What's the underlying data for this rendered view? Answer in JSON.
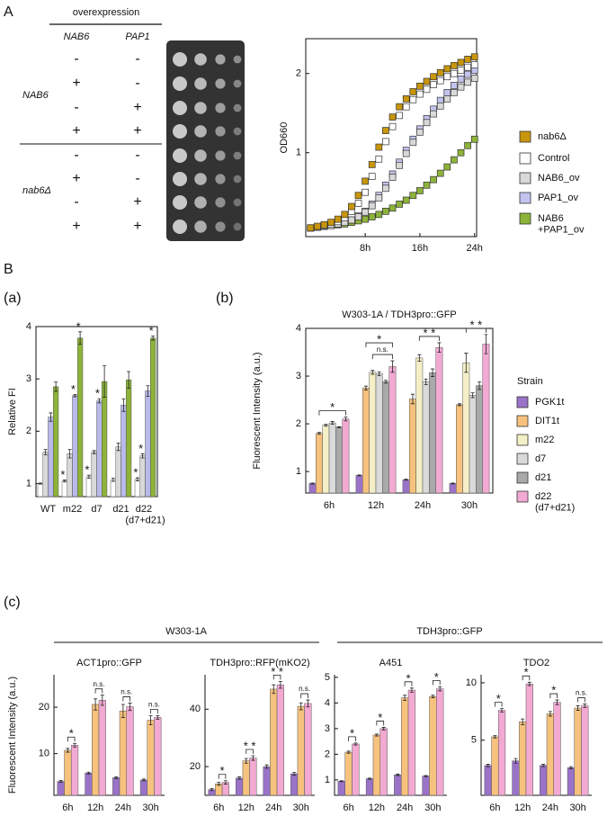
{
  "panel_labels": [
    "A",
    "B",
    "(a)",
    "(b)",
    "(c)"
  ],
  "genotype_table": {
    "header": "overexpression",
    "columns": [
      "NAB6",
      "PAP1"
    ],
    "groups": [
      {
        "label": "NAB6",
        "rows": [
          [
            "-",
            "-"
          ],
          [
            "+",
            "-"
          ],
          [
            "-",
            "+"
          ],
          [
            "+",
            "+"
          ]
        ]
      },
      {
        "label": "nab6Δ",
        "rows": [
          [
            "-",
            "-"
          ],
          [
            "+",
            "-"
          ],
          [
            "-",
            "+"
          ],
          [
            "+",
            "+"
          ]
        ]
      }
    ]
  },
  "panel_c_headers": [
    "W303-1A",
    "TDH3pro::GFP"
  ],
  "chart_data": [
    {
      "type": "line",
      "ylabel": "OD660",
      "x": [
        0,
        1,
        2,
        3,
        4,
        5,
        6,
        7,
        8,
        9,
        10,
        11,
        12,
        13,
        14,
        15,
        16,
        17,
        18,
        19,
        20,
        21,
        22,
        23,
        24
      ],
      "xlim": [
        -0.7,
        24.3
      ],
      "xticks": [
        {
          "value": 8,
          "label": "8h"
        },
        {
          "value": 16,
          "label": "16h"
        },
        {
          "value": 24,
          "label": "24h"
        }
      ],
      "ylim": [
        -0.06,
        2.44
      ],
      "yticks": [
        1,
        2
      ],
      "series": [
        {
          "name": "nab6Δ",
          "color": "#c8960c",
          "values": [
            0.05,
            0.07,
            0.09,
            0.12,
            0.16,
            0.22,
            0.32,
            0.46,
            0.64,
            0.85,
            1.07,
            1.28,
            1.45,
            1.58,
            1.68,
            1.77,
            1.84,
            1.9,
            1.96,
            2.01,
            2.06,
            2.1,
            2.14,
            2.18,
            2.21
          ]
        },
        {
          "name": "Control",
          "color": "#ffffff",
          "values": [
            0.05,
            0.06,
            0.08,
            0.1,
            0.13,
            0.18,
            0.26,
            0.36,
            0.5,
            0.7,
            0.92,
            1.14,
            1.33,
            1.47,
            1.58,
            1.67,
            1.74,
            1.8,
            1.86,
            1.91,
            1.96,
            2.0,
            2.04,
            2.08,
            2.11
          ]
        },
        {
          "name": "NAB6_ov",
          "color": "#d9d9d9",
          "values": [
            0.05,
            0.06,
            0.07,
            0.08,
            0.1,
            0.12,
            0.15,
            0.19,
            0.25,
            0.33,
            0.43,
            0.55,
            0.69,
            0.84,
            0.99,
            1.13,
            1.26,
            1.38,
            1.49,
            1.59,
            1.68,
            1.76,
            1.83,
            1.89,
            1.94
          ]
        },
        {
          "name": "PAP1_ov",
          "color": "#c3c3ef",
          "values": [
            0.05,
            0.06,
            0.07,
            0.08,
            0.1,
            0.12,
            0.15,
            0.2,
            0.26,
            0.35,
            0.46,
            0.59,
            0.73,
            0.88,
            1.03,
            1.17,
            1.3,
            1.43,
            1.55,
            1.66,
            1.76,
            1.85,
            1.93,
            1.99,
            2.04
          ]
        },
        {
          "name": "NAB6 +PAP1_ov",
          "color": "#8db33a",
          "values": [
            0.05,
            0.06,
            0.07,
            0.08,
            0.09,
            0.1,
            0.12,
            0.14,
            0.16,
            0.19,
            0.22,
            0.26,
            0.3,
            0.35,
            0.4,
            0.46,
            0.52,
            0.59,
            0.66,
            0.74,
            0.82,
            0.91,
            1.0,
            1.09,
            1.17
          ]
        }
      ]
    },
    {
      "type": "bar",
      "ylabel": "Relative FI",
      "categories": [
        "WT",
        "m22",
        "d7",
        "d21",
        "d22 (d7+d21)"
      ],
      "ylim": [
        0.75,
        4
      ],
      "yticks": [
        1,
        2,
        3,
        4
      ],
      "series": [
        {
          "color": "#ffffff",
          "values": [
            1.0,
            1.05,
            1.13,
            1.07,
            1.08
          ],
          "errors": [
            0.01,
            0.02,
            0.03,
            0.03,
            0.03
          ]
        },
        {
          "color": "#d9d9d9",
          "values": [
            1.6,
            1.57,
            1.6,
            1.7,
            1.53
          ],
          "errors": [
            0.05,
            0.08,
            0.03,
            0.07,
            0.04
          ]
        },
        {
          "color": "#b9b9ea",
          "values": [
            2.27,
            2.68,
            2.58,
            2.5,
            2.77
          ],
          "errors": [
            0.08,
            0.02,
            0.04,
            0.12,
            0.1
          ]
        },
        {
          "color": "#8db33a",
          "values": [
            2.85,
            3.78,
            2.95,
            2.98,
            3.78
          ],
          "errors": [
            0.09,
            0.12,
            0.3,
            0.16,
            0.04
          ]
        }
      ],
      "annotations": [
        {
          "text": "*",
          "category": 1,
          "series": 0
        },
        {
          "text": "*",
          "category": 1,
          "series": 2
        },
        {
          "text": "*",
          "category": 1,
          "series": 3
        },
        {
          "text": "*",
          "category": 2,
          "series": 0
        },
        {
          "text": "*",
          "category": 2,
          "series": 2
        },
        {
          "text": "*",
          "category": 4,
          "series": 0
        },
        {
          "text": "*",
          "category": 4,
          "series": 1
        },
        {
          "text": "*",
          "category": 4,
          "series": 3
        }
      ]
    },
    {
      "type": "bar",
      "title": "W303-1A / TDH3pro::GFP",
      "ylabel": "Fluorescent Intensity (a.u.)",
      "legend_title": "Strain",
      "categories": [
        "6h",
        "12h",
        "24h",
        "30h"
      ],
      "ylim": [
        0.55,
        4
      ],
      "yticks": [
        1,
        2,
        3,
        4
      ],
      "series": [
        {
          "name": "PGK1t",
          "color": "#9a73c8",
          "values": [
            0.75,
            0.92,
            0.83,
            0.75
          ],
          "errors": [
            0.01,
            0.01,
            0.01,
            0.01
          ]
        },
        {
          "name": "DIT1t",
          "color": "#f6c27e",
          "values": [
            1.8,
            2.75,
            2.52,
            2.4
          ],
          "errors": [
            0.02,
            0.04,
            0.1,
            0.02
          ]
        },
        {
          "name": "m22",
          "color": "#f4efc6",
          "values": [
            1.97,
            3.08,
            3.38,
            3.28
          ],
          "errors": [
            0.02,
            0.04,
            0.07,
            0.2
          ]
        },
        {
          "name": "d7",
          "color": "#dadada",
          "values": [
            2.02,
            3.05,
            2.88,
            2.6
          ],
          "errors": [
            0.03,
            0.04,
            0.06,
            0.05
          ]
        },
        {
          "name": "d21",
          "color": "#a9a9a9",
          "values": [
            1.93,
            2.88,
            3.07,
            2.8
          ],
          "errors": [
            0.01,
            0.03,
            0.08,
            0.08
          ]
        },
        {
          "name": "d22 (d7+d21)",
          "color": "#f2a9d2",
          "values": [
            2.1,
            3.2,
            3.6,
            3.67
          ],
          "errors": [
            0.04,
            0.12,
            0.1,
            0.2
          ]
        }
      ],
      "annotations": [
        {
          "text": "*",
          "category": 0,
          "from": 1,
          "to": 5
        },
        {
          "text": "n.s.",
          "category": 1,
          "from": 2,
          "to": 5
        },
        {
          "text": "*",
          "category": 1,
          "from": 1,
          "to": 5
        },
        {
          "text": "* *",
          "category": 2,
          "from": 2,
          "to": 5
        },
        {
          "text": "* *",
          "category": 3,
          "from": 2,
          "to": 5
        }
      ]
    },
    {
      "type": "bar",
      "title": "ACT1pro::GFP",
      "ylabel": "Fluorescent Intensity (a.u.)",
      "categories": [
        "6h",
        "12h",
        "24h",
        "30h"
      ],
      "ylim": [
        1,
        27
      ],
      "yticks": [
        10,
        20
      ],
      "series": [
        {
          "color": "#9a73c8",
          "values": [
            4.0,
            5.8,
            4.8,
            4.3
          ],
          "errors": [
            0.2,
            0.2,
            0.2,
            0.2
          ]
        },
        {
          "color": "#f6c27e",
          "values": [
            10.7,
            20.6,
            19.2,
            17.2
          ],
          "errors": [
            0.4,
            1.2,
            1.4,
            1.0
          ]
        },
        {
          "color": "#f2a9d2",
          "values": [
            11.8,
            21.5,
            20.1,
            17.8
          ],
          "errors": [
            0.4,
            1.1,
            0.8,
            0.4
          ]
        }
      ],
      "annotations": [
        {
          "text": "*",
          "category": 0,
          "from": 1,
          "to": 2
        },
        {
          "text": "n.s.",
          "category": 1,
          "from": 1,
          "to": 2
        },
        {
          "text": "n.s.",
          "category": 2,
          "from": 1,
          "to": 2
        },
        {
          "text": "n.s.",
          "category": 3,
          "from": 1,
          "to": 2
        }
      ]
    },
    {
      "type": "bar",
      "title": "TDH3pro::RFP(mKO2)",
      "categories": [
        "6h",
        "12h",
        "24h",
        "30h"
      ],
      "ylim": [
        10,
        52
      ],
      "yticks": [
        20,
        40
      ],
      "series": [
        {
          "color": "#9a73c8",
          "values": [
            12,
            16,
            20,
            17.5
          ],
          "errors": [
            0.4,
            0.4,
            0.6,
            0.5
          ]
        },
        {
          "color": "#f6c27e",
          "values": [
            14,
            22,
            47,
            41
          ],
          "errors": [
            0.5,
            0.8,
            1.5,
            1.2
          ]
        },
        {
          "color": "#f2a9d2",
          "values": [
            14.5,
            23,
            48.5,
            42
          ],
          "errors": [
            0.6,
            0.8,
            1.2,
            1.2
          ]
        }
      ],
      "annotations": [
        {
          "text": "*",
          "category": 0,
          "from": 1,
          "to": 2
        },
        {
          "text": "* *",
          "category": 1,
          "from": 1,
          "to": 2
        },
        {
          "text": "* *",
          "category": 2,
          "from": 1,
          "to": 2
        },
        {
          "text": "n.s.",
          "category": 3,
          "from": 1,
          "to": 2
        }
      ]
    },
    {
      "type": "bar",
      "title": "A451",
      "categories": [
        "6h",
        "12h",
        "24h",
        "30h"
      ],
      "ylim": [
        0.4,
        5.1
      ],
      "yticks": [
        1,
        2,
        3,
        4,
        5
      ],
      "series": [
        {
          "color": "#9a73c8",
          "values": [
            0.95,
            1.05,
            1.2,
            1.15
          ],
          "errors": [
            0.02,
            0.02,
            0.03,
            0.02
          ]
        },
        {
          "color": "#f6c27e",
          "values": [
            2.08,
            2.75,
            4.2,
            4.25
          ],
          "errors": [
            0.04,
            0.04,
            0.1,
            0.05
          ]
        },
        {
          "color": "#f2a9d2",
          "values": [
            2.4,
            3.0,
            4.5,
            4.55
          ],
          "errors": [
            0.04,
            0.05,
            0.08,
            0.08
          ]
        }
      ],
      "annotations": [
        {
          "text": "*",
          "category": 0,
          "from": 1,
          "to": 2
        },
        {
          "text": "*",
          "category": 1,
          "from": 1,
          "to": 2
        },
        {
          "text": "*",
          "category": 2,
          "from": 1,
          "to": 2
        },
        {
          "text": "*",
          "category": 3,
          "from": 1,
          "to": 2
        }
      ]
    },
    {
      "type": "bar",
      "title": "TDO2",
      "categories": [
        "6h",
        "12h",
        "24h",
        "30h"
      ],
      "ylim": [
        0.2,
        10.7
      ],
      "yticks": [
        5,
        10
      ],
      "series": [
        {
          "color": "#9a73c8",
          "values": [
            2.8,
            3.2,
            2.8,
            2.6
          ],
          "errors": [
            0.1,
            0.2,
            0.1,
            0.1
          ]
        },
        {
          "color": "#f6c27e",
          "values": [
            5.3,
            6.6,
            7.3,
            7.8
          ],
          "errors": [
            0.1,
            0.25,
            0.2,
            0.2
          ]
        },
        {
          "color": "#f2a9d2",
          "values": [
            7.6,
            9.9,
            8.3,
            8.0
          ],
          "errors": [
            0.15,
            0.15,
            0.2,
            0.15
          ]
        }
      ],
      "annotations": [
        {
          "text": "*",
          "category": 0,
          "from": 1,
          "to": 2
        },
        {
          "text": "*",
          "category": 1,
          "from": 1,
          "to": 2
        },
        {
          "text": "*",
          "category": 2,
          "from": 1,
          "to": 2
        },
        {
          "text": "n.s.",
          "category": 3,
          "from": 1,
          "to": 2
        }
      ]
    }
  ]
}
